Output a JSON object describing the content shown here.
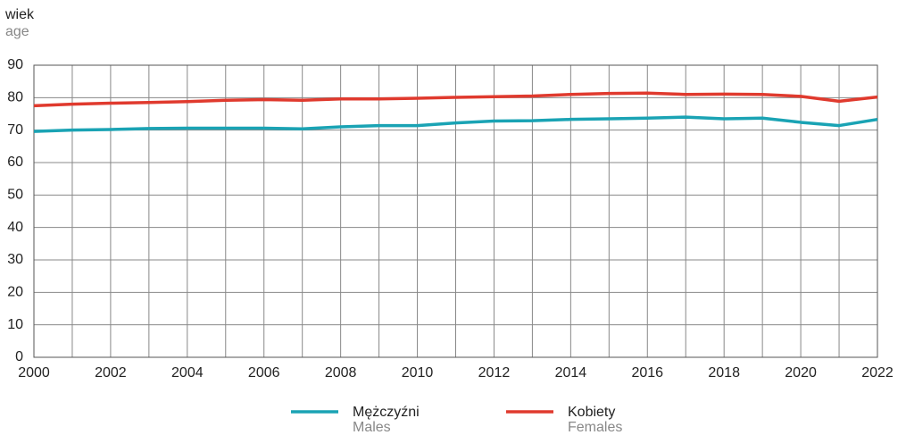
{
  "chart_data": {
    "type": "line",
    "ylabel": "wiek",
    "ylabel_en": "age",
    "x": [
      2000,
      2001,
      2002,
      2003,
      2004,
      2005,
      2006,
      2007,
      2008,
      2009,
      2010,
      2011,
      2012,
      2013,
      2014,
      2015,
      2016,
      2017,
      2018,
      2019,
      2020,
      2021,
      2022
    ],
    "series": [
      {
        "name": "Mężczyźni",
        "name_en": "Males",
        "color": "#1aa3b4",
        "values": [
          69.6,
          70.0,
          70.2,
          70.5,
          70.6,
          70.6,
          70.6,
          70.4,
          71.0,
          71.4,
          71.4,
          72.2,
          72.8,
          72.9,
          73.3,
          73.5,
          73.7,
          74.0,
          73.5,
          73.7,
          72.4,
          71.4,
          73.3
        ]
      },
      {
        "name": "Kobiety",
        "name_en": "Females",
        "color": "#e03a2e",
        "values": [
          77.5,
          78.0,
          78.3,
          78.5,
          78.8,
          79.2,
          79.4,
          79.2,
          79.6,
          79.6,
          79.8,
          80.1,
          80.3,
          80.5,
          81.0,
          81.3,
          81.4,
          81.0,
          81.1,
          81.0,
          80.4,
          78.9,
          80.2
        ]
      }
    ],
    "xlim": [
      2000,
      2022
    ],
    "xticks": [
      2000,
      2002,
      2004,
      2006,
      2008,
      2010,
      2012,
      2014,
      2016,
      2018,
      2020,
      2022
    ],
    "ylim": [
      0,
      90
    ],
    "yticks": [
      0,
      10,
      20,
      30,
      40,
      50,
      60,
      70,
      80,
      90
    ],
    "grid": true
  }
}
